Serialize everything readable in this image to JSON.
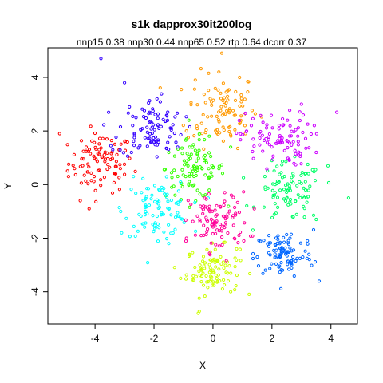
{
  "chart_data": {
    "type": "scatter",
    "title": "s1k dapprox30it200log",
    "subtitle": "nnp15 0.38 nnp30 0.44 nnp65 0.52 rtp 0.64 dcorr 0.37",
    "xlabel": "X",
    "ylabel": "Y",
    "xlim": [
      -5.6,
      4.9
    ],
    "ylim": [
      -5.2,
      5.1
    ],
    "xticks": [
      -4,
      -2,
      0,
      2,
      4
    ],
    "yticks": [
      -4,
      -2,
      0,
      2,
      4
    ],
    "grid": false,
    "legend": "none",
    "marker": "open-circle",
    "series": [
      {
        "color": "#ff0000",
        "center": [
          -3.8,
          0.8
        ],
        "spread": [
          0.55,
          0.55
        ],
        "n": 100,
        "points": [
          [
            -5.2,
            1.9
          ],
          [
            -4.9,
            0.3
          ],
          [
            -4.5,
            -0.6
          ],
          [
            -4.2,
            -0.9
          ],
          [
            -3.3,
            0.4
          ],
          [
            -3.6,
            1.7
          ],
          [
            -4.3,
            1.4
          ]
        ]
      },
      {
        "color": "#ff9900",
        "center": [
          0.3,
          2.8
        ],
        "spread": [
          0.6,
          0.7
        ],
        "n": 100,
        "points": [
          [
            0.3,
            4.9
          ],
          [
            0.2,
            4.2
          ],
          [
            0.9,
            4.0
          ],
          [
            -0.6,
            3.9
          ],
          [
            -0.9,
            2.0
          ],
          [
            1.1,
            1.9
          ],
          [
            0.5,
            3.5
          ]
        ]
      },
      {
        "color": "#ccff00",
        "center": [
          0.0,
          -3.2
        ],
        "spread": [
          0.45,
          0.45
        ],
        "n": 100,
        "points": [
          [
            -0.5,
            -4.8
          ],
          [
            -1.1,
            -3.5
          ],
          [
            0.6,
            -4.0
          ],
          [
            -0.8,
            -2.6
          ],
          [
            0.8,
            -2.4
          ]
        ]
      },
      {
        "color": "#33ff00",
        "center": [
          -0.6,
          0.6
        ],
        "spread": [
          0.5,
          0.55
        ],
        "n": 100,
        "points": [
          [
            -1.5,
            1.2
          ],
          [
            -0.9,
            1.7
          ],
          [
            0.6,
            1.4
          ],
          [
            -1.4,
            -0.1
          ]
        ]
      },
      {
        "color": "#00ff66",
        "center": [
          2.6,
          -0.3
        ],
        "spread": [
          0.55,
          0.55
        ],
        "n": 100,
        "points": [
          [
            4.6,
            -0.5
          ],
          [
            3.9,
            0.7
          ],
          [
            3.5,
            -1.3
          ],
          [
            2.0,
            0.9
          ],
          [
            2.7,
            -1.2
          ]
        ]
      },
      {
        "color": "#00ffff",
        "center": [
          -1.9,
          -0.9
        ],
        "spread": [
          0.55,
          0.5
        ],
        "n": 100,
        "points": [
          [
            -3.1,
            -1.8
          ],
          [
            -2.7,
            0.3
          ],
          [
            -1.1,
            0.1
          ],
          [
            -1.5,
            -2.2
          ]
        ]
      },
      {
        "color": "#0066ff",
        "center": [
          2.4,
          -2.6
        ],
        "spread": [
          0.5,
          0.45
        ],
        "n": 100,
        "points": [
          [
            1.5,
            -2.7
          ],
          [
            3.6,
            -3.6
          ],
          [
            3.2,
            -2.1
          ],
          [
            1.9,
            -1.9
          ]
        ]
      },
      {
        "color": "#3300ff",
        "center": [
          -2.1,
          2.1
        ],
        "spread": [
          0.55,
          0.55
        ],
        "n": 100,
        "points": [
          [
            -3.8,
            4.7
          ],
          [
            -3.0,
            3.8
          ],
          [
            -1.9,
            3.2
          ],
          [
            -3.4,
            1.3
          ],
          [
            -1.2,
            1.4
          ]
        ]
      },
      {
        "color": "#cc00ff",
        "center": [
          2.1,
          1.7
        ],
        "spread": [
          0.6,
          0.5
        ],
        "n": 100,
        "points": [
          [
            3.0,
            3.0
          ],
          [
            4.2,
            2.7
          ],
          [
            3.5,
            1.2
          ],
          [
            1.3,
            2.2
          ],
          [
            2.9,
            1.1
          ]
        ]
      },
      {
        "color": "#ff0099",
        "center": [
          0.2,
          -1.4
        ],
        "spread": [
          0.5,
          0.55
        ],
        "n": 100,
        "points": [
          [
            -0.9,
            -2.0
          ],
          [
            1.4,
            -0.9
          ],
          [
            0.4,
            -0.3
          ],
          [
            -0.4,
            -1.9
          ]
        ]
      }
    ]
  }
}
